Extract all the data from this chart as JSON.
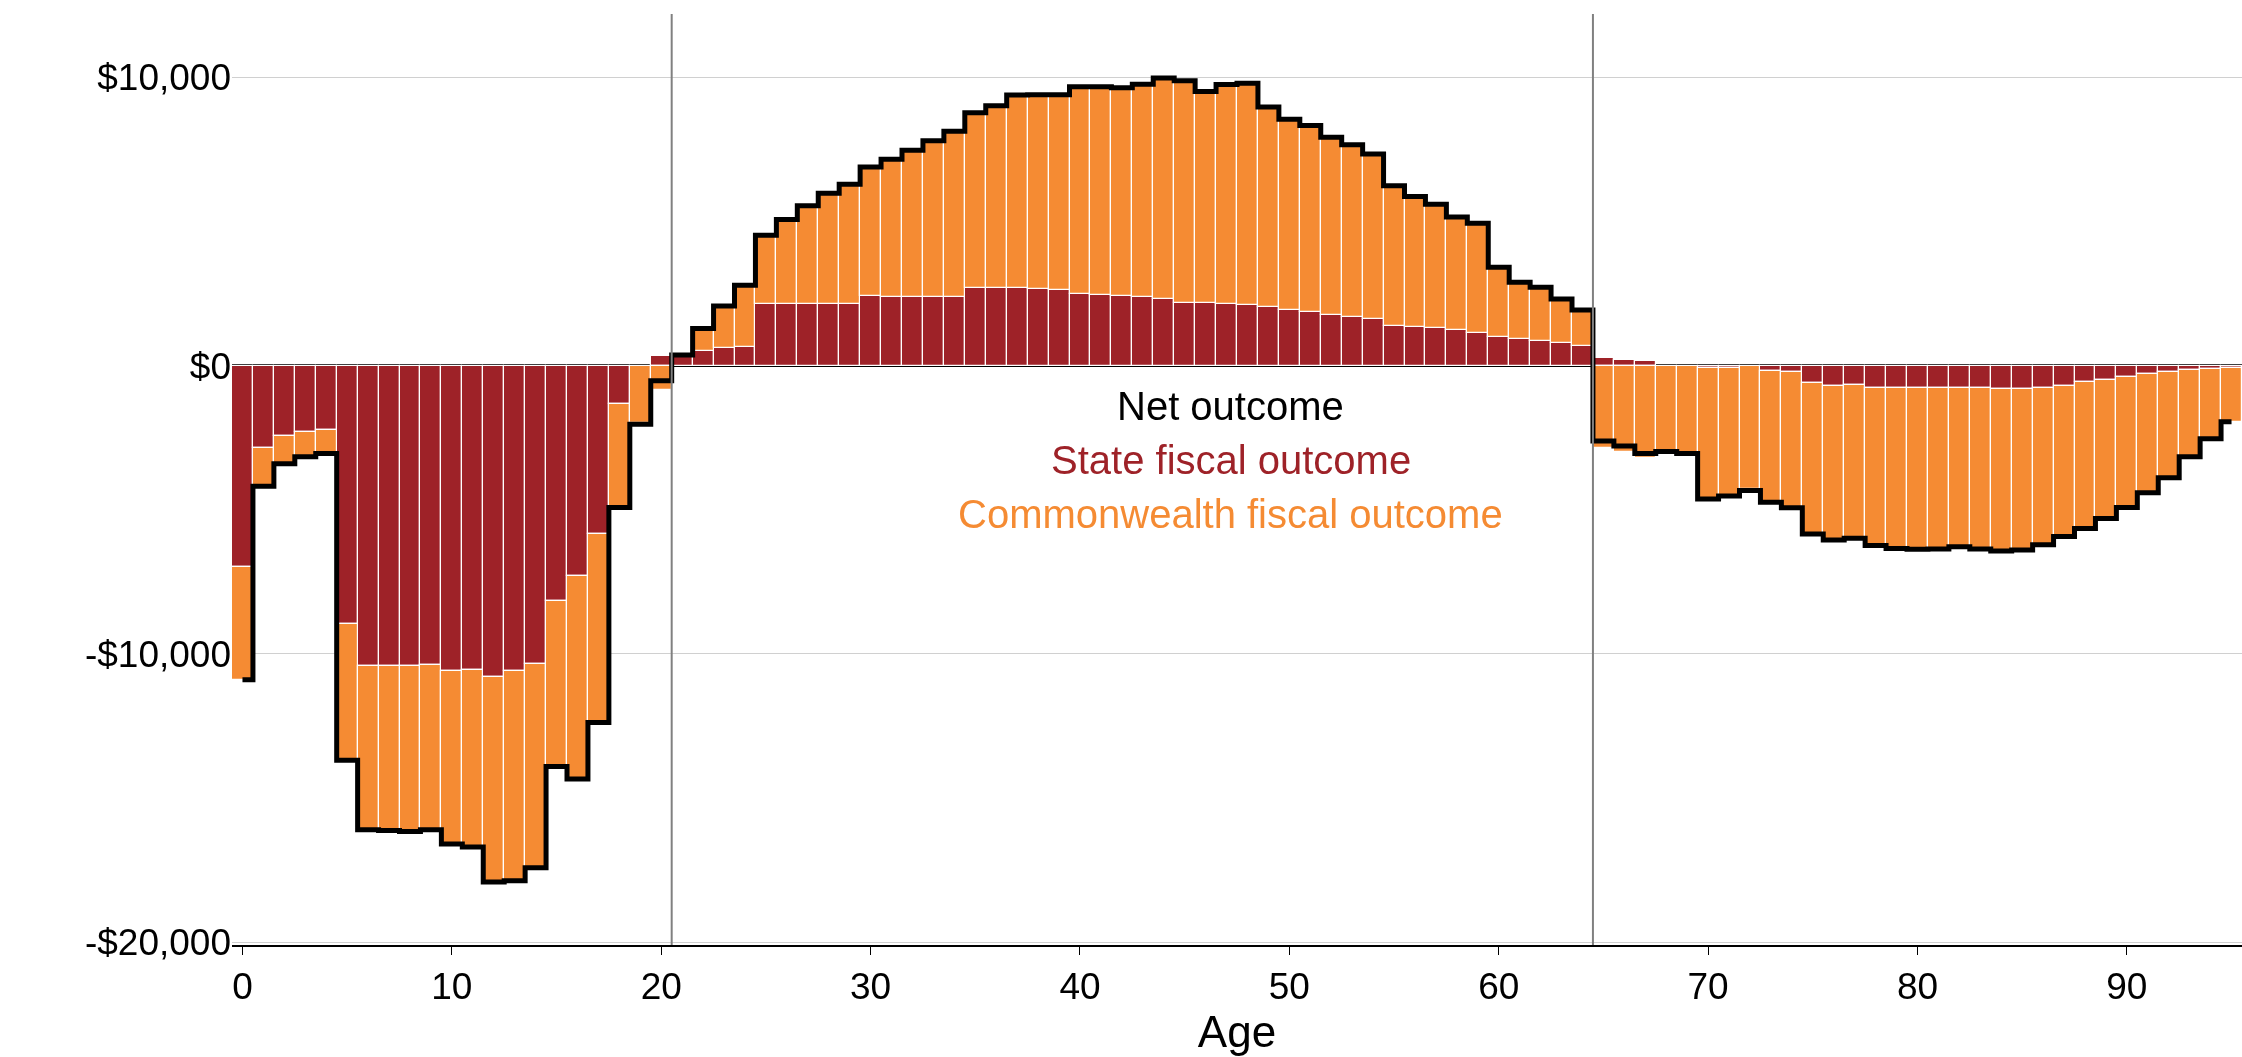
{
  "chart_data": {
    "type": "bar",
    "stacked": true,
    "xlabel": "Age",
    "x": [
      0,
      1,
      2,
      3,
      4,
      5,
      6,
      7,
      8,
      9,
      10,
      11,
      12,
      13,
      14,
      15,
      16,
      17,
      18,
      19,
      20,
      21,
      22,
      23,
      24,
      25,
      26,
      27,
      28,
      29,
      30,
      31,
      32,
      33,
      34,
      35,
      36,
      37,
      38,
      39,
      40,
      41,
      42,
      43,
      44,
      45,
      46,
      47,
      48,
      49,
      50,
      51,
      52,
      53,
      54,
      55,
      56,
      57,
      58,
      59,
      60,
      61,
      62,
      63,
      64,
      65,
      66,
      67,
      68,
      69,
      70,
      71,
      72,
      73,
      74,
      75,
      76,
      77,
      78,
      79,
      80,
      81,
      82,
      83,
      84,
      85,
      86,
      87,
      88,
      89,
      90,
      91,
      92,
      93,
      94,
      95
    ],
    "series": [
      {
        "name": "Net outcome",
        "type": "step",
        "color": "#000000",
        "values": [
          -10900,
          -4180,
          -3400,
          -3160,
          -3050,
          -13690,
          -16100,
          -16130,
          -16160,
          -16100,
          -16600,
          -16700,
          -17910,
          -17870,
          -17420,
          -13910,
          -14340,
          -12380,
          -4920,
          -2030,
          -520,
          370,
          1290,
          2070,
          2790,
          4520,
          5070,
          5550,
          5980,
          6290,
          6890,
          7160,
          7470,
          7800,
          8130,
          8770,
          9020,
          9390,
          9400,
          9400,
          9680,
          9680,
          9640,
          9760,
          9980,
          9880,
          9510,
          9750,
          9800,
          8970,
          8550,
          8330,
          7920,
          7660,
          7340,
          6240,
          5870,
          5600,
          5160,
          4940,
          3410,
          2890,
          2720,
          2310,
          1930,
          -2610,
          -2790,
          -3050,
          -2980,
          -3050,
          -4630,
          -4520,
          -4330,
          -4740,
          -4930,
          -5840,
          -6050,
          -5990,
          -6240,
          -6340,
          -6370,
          -6360,
          -6280,
          -6360,
          -6430,
          -6400,
          -6210,
          -5930,
          -5650,
          -5300,
          -4920,
          -4410,
          -3890,
          -3160,
          -2540,
          -1950
        ]
      },
      {
        "name": "State fiscal outcome",
        "color": "#9e2228",
        "values": [
          -7000,
          -2840,
          -2450,
          -2310,
          -2230,
          -8980,
          -10430,
          -10430,
          -10430,
          -10380,
          -10600,
          -10570,
          -10810,
          -10600,
          -10350,
          -8180,
          -7300,
          -5840,
          -1320,
          null,
          340,
          330,
          520,
          610,
          650,
          2130,
          2130,
          2130,
          2130,
          2130,
          2410,
          2380,
          2370,
          2370,
          2380,
          2680,
          2680,
          2680,
          2660,
          2630,
          2480,
          2460,
          2410,
          2370,
          2320,
          2190,
          2160,
          2140,
          2110,
          2030,
          1940,
          1850,
          1760,
          1700,
          1620,
          1380,
          1330,
          1300,
          1240,
          1150,
          1010,
          930,
          870,
          800,
          690,
          250,
          200,
          150,
          null,
          null,
          -90,
          -70,
          null,
          -190,
          -230,
          -590,
          -700,
          -680,
          -760,
          -760,
          -780,
          -780,
          -780,
          -790,
          -820,
          -820,
          -790,
          -700,
          -570,
          -500,
          -410,
          -290,
          -220,
          -150,
          -120,
          -90
        ]
      },
      {
        "name": "Commonwealth fiscal outcome",
        "color": "#f58b33",
        "values": [
          -3900,
          -1340,
          -950,
          -850,
          -820,
          -4710,
          -5670,
          -5700,
          -5730,
          -5720,
          -6000,
          -6130,
          -7100,
          -7270,
          -7070,
          -5730,
          -7040,
          -6540,
          -3600,
          -1990,
          -860,
          null,
          770,
          1460,
          2140,
          2390,
          2940,
          3420,
          3850,
          4160,
          4480,
          4780,
          5100,
          5430,
          5750,
          6090,
          6340,
          6710,
          6740,
          6770,
          7200,
          7220,
          7230,
          7390,
          7660,
          7690,
          7350,
          7610,
          7690,
          6940,
          6610,
          6480,
          6160,
          5960,
          5720,
          4860,
          4540,
          4300,
          3920,
          3790,
          2400,
          1960,
          1850,
          1510,
          1240,
          -2860,
          -2990,
          -3200,
          -2980,
          -3050,
          -4540,
          -4450,
          -4290,
          -4550,
          -4700,
          -5250,
          -5350,
          -5310,
          -5480,
          -5580,
          -5590,
          -5580,
          -5500,
          -5570,
          -5610,
          -5580,
          -5420,
          -5230,
          -5080,
          -4800,
          -4510,
          -4120,
          -3670,
          -3010,
          -2420,
          -1860
        ]
      }
    ],
    "xlim": [
      -0.5,
      95.5
    ],
    "xticks": [
      0,
      10,
      20,
      30,
      40,
      50,
      60,
      70,
      80,
      90
    ],
    "ylim": [
      -20100,
      12200
    ],
    "yticks": [
      {
        "value": -20000,
        "label": "-$20,000"
      },
      {
        "value": -10000,
        "label": "-$10,000"
      },
      {
        "value": 0,
        "label": "$0"
      },
      {
        "value": 10000,
        "label": "$10,000"
      }
    ],
    "grid": "y",
    "ref_lines": [
      {
        "axis": "x",
        "value": 20.5,
        "label": null,
        "color": "#808080"
      },
      {
        "axis": "x",
        "value": 64.5,
        "label": null,
        "color": "#808080"
      }
    ]
  }
}
